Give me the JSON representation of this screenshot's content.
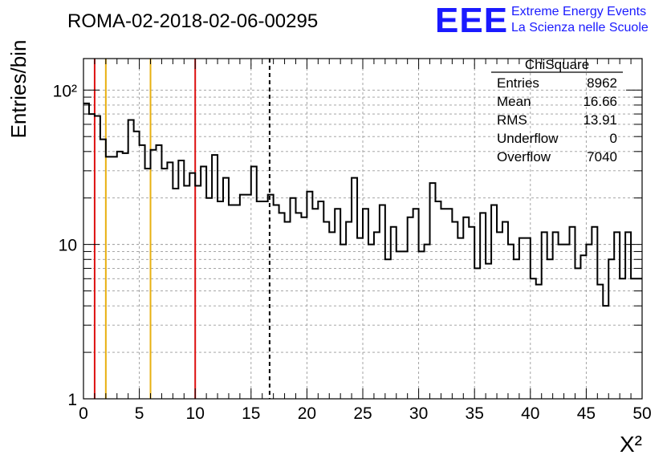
{
  "chart_data": {
    "type": "bar",
    "title": "ROMA-02-2018-02-06-00295",
    "xlabel": "X²",
    "ylabel": "Entries/bin",
    "xlim": [
      0,
      50
    ],
    "ylim": [
      1,
      160
    ],
    "y_scale": "log",
    "grid": true,
    "bin_width": 0.5,
    "x_ticks": [
      0,
      5,
      10,
      15,
      20,
      25,
      30,
      35,
      40,
      45,
      50
    ],
    "x_tick_labels": [
      "0",
      "5",
      "10",
      "15",
      "20",
      "25",
      "30",
      "35",
      "40",
      "45",
      "50"
    ],
    "y_ticks": [
      1,
      10,
      100
    ],
    "y_tick_labels": [
      "1",
      "10",
      "10²"
    ],
    "values": [
      82,
      70,
      68,
      48,
      37,
      37,
      40,
      39,
      64,
      54,
      44,
      31,
      41,
      44,
      31,
      34,
      23,
      35,
      24,
      29,
      24,
      32,
      20,
      38,
      19,
      27,
      18,
      18,
      21,
      21,
      32,
      19,
      19,
      21,
      18,
      16,
      14,
      20,
      16,
      15,
      22,
      17,
      19,
      14,
      12,
      17,
      10,
      14,
      27,
      11,
      17,
      10,
      12,
      18,
      8,
      13,
      9,
      9,
      15,
      17,
      9,
      10,
      25,
      19,
      17,
      17,
      14,
      11,
      15,
      13,
      7,
      16,
      7.5,
      18,
      12,
      14,
      10,
      8,
      11,
      11,
      6,
      5.5,
      12,
      8,
      12,
      10,
      10,
      13,
      7,
      8.5,
      10,
      13,
      5.5,
      4,
      8,
      12,
      6,
      12,
      6,
      6
    ],
    "vertical_lines": [
      {
        "x": 1,
        "color": "#dd1111",
        "style": "solid"
      },
      {
        "x": 2,
        "color": "#e8b010",
        "style": "solid"
      },
      {
        "x": 6,
        "color": "#e8b010",
        "style": "solid"
      },
      {
        "x": 10,
        "color": "#dd1111",
        "style": "solid"
      },
      {
        "x": 16.66,
        "color": "#000000",
        "style": "dashed"
      }
    ],
    "stats_box": {
      "title": "ChiSquare",
      "rows": [
        {
          "label": "Entries",
          "value": "8962"
        },
        {
          "label": "Mean",
          "value": "16.66"
        },
        {
          "label": "RMS",
          "value": "13.91"
        },
        {
          "label": "Underflow",
          "value": "0"
        },
        {
          "label": "Overflow",
          "value": "7040"
        }
      ]
    }
  },
  "logo": {
    "text": "EEE",
    "line1": "Extreme Energy Events",
    "line2": "La Scienza nelle Scuole",
    "color": "#1a1aff"
  }
}
